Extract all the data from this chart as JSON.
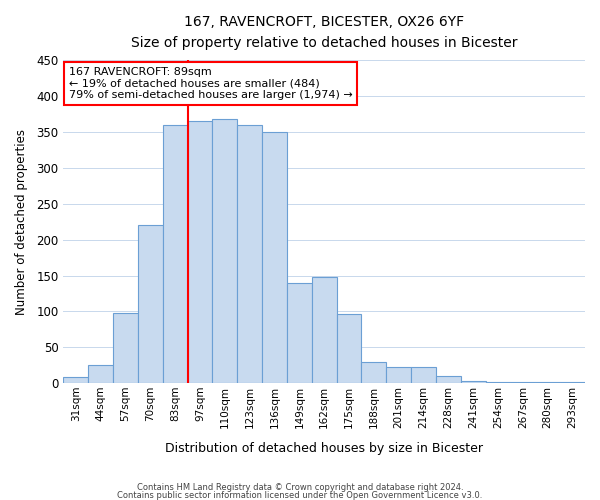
{
  "title": "167, RAVENCROFT, BICESTER, OX26 6YF",
  "subtitle": "Size of property relative to detached houses in Bicester",
  "xlabel": "Distribution of detached houses by size in Bicester",
  "ylabel": "Number of detached properties",
  "bar_color": "#c8daef",
  "bar_edge_color": "#6b9fd4",
  "categories": [
    "31sqm",
    "44sqm",
    "57sqm",
    "70sqm",
    "83sqm",
    "97sqm",
    "110sqm",
    "123sqm",
    "136sqm",
    "149sqm",
    "162sqm",
    "175sqm",
    "188sqm",
    "201sqm",
    "214sqm",
    "228sqm",
    "241sqm",
    "254sqm",
    "267sqm",
    "280sqm",
    "293sqm"
  ],
  "values": [
    8,
    25,
    98,
    220,
    360,
    365,
    368,
    360,
    350,
    140,
    148,
    97,
    30,
    22,
    22,
    10,
    3,
    1,
    1,
    2,
    1
  ],
  "ylim": [
    0,
    450
  ],
  "yticks": [
    0,
    50,
    100,
    150,
    200,
    250,
    300,
    350,
    400,
    450
  ],
  "red_line_x": 4.5,
  "marker_label": "167 RAVENCROFT: 89sqm",
  "annotation_line1": "← 19% of detached houses are smaller (484)",
  "annotation_line2": "79% of semi-detached houses are larger (1,974) →",
  "footer1": "Contains HM Land Registry data © Crown copyright and database right 2024.",
  "footer2": "Contains public sector information licensed under the Open Government Licence v3.0.",
  "background_color": "#ffffff",
  "grid_color": "#c8d8ec"
}
